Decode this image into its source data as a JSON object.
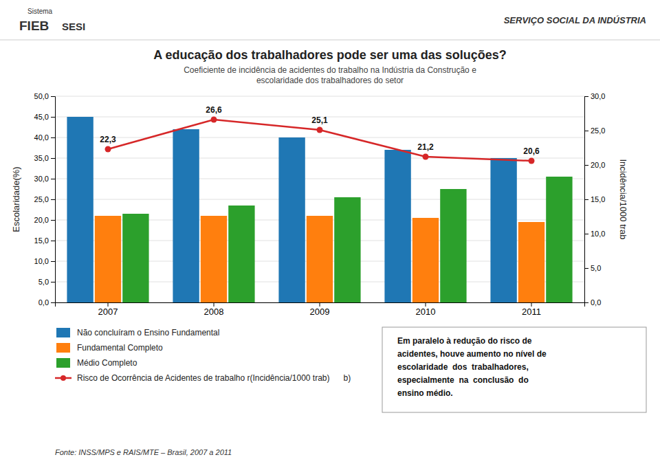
{
  "chart_data": {
    "type": "bar",
    "title": "A educação dos trabalhadores pode ser uma das soluções?",
    "subtitle": [
      "Coeficiente de incidência de acidentes do trabalho na Indústria da Construção e",
      "escolaridade dos trabalhadores do setor"
    ],
    "categories": [
      "2007",
      "2008",
      "2009",
      "2010",
      "2011"
    ],
    "series": [
      {
        "name": "Não concluíram o Ensino Fundamental",
        "values": [
          45.0,
          42.0,
          40.0,
          37.0,
          35.0
        ]
      },
      {
        "name": "Fundamental Completo",
        "values": [
          21.0,
          21.0,
          21.0,
          20.5,
          19.5
        ]
      },
      {
        "name": "Médio Completo",
        "values": [
          21.5,
          23.5,
          25.5,
          27.5,
          30.5
        ]
      },
      {
        "name": "Risco de Ocorrência de Acidentes de trabalho r(Incidência/1000 trab)      b)",
        "type": "line",
        "axis": "y2",
        "marker": "circle",
        "data_labels": true,
        "values": [
          22.3,
          26.6,
          25.1,
          21.2,
          20.6
        ],
        "value_labels": [
          "22,3",
          "26,6",
          "25,1",
          "21,2",
          "20,6"
        ]
      }
    ],
    "ylim": [
      0,
      50
    ],
    "yticks": [
      {
        "value": 0.0,
        "label": "0,0"
      },
      {
        "value": 5.0,
        "label": "5,0"
      },
      {
        "value": 10.0,
        "label": "10,0"
      },
      {
        "value": 15.0,
        "label": "15,0"
      },
      {
        "value": 20.0,
        "label": "20,0"
      },
      {
        "value": 25.0,
        "label": "25,0"
      },
      {
        "value": 30.0,
        "label": "30,0"
      },
      {
        "value": 35.0,
        "label": "35,0"
      },
      {
        "value": 40.0,
        "label": "40,0"
      },
      {
        "value": 45.0,
        "label": "45,0"
      },
      {
        "value": 50.0,
        "label": "50,0"
      }
    ],
    "y2lim": [
      0,
      30
    ],
    "y2ticks": [
      {
        "value": 0.0,
        "label": "0,0"
      },
      {
        "value": 5.0,
        "label": "5,0"
      },
      {
        "value": 10.0,
        "label": "10,0"
      },
      {
        "value": 15.0,
        "label": "15,0"
      },
      {
        "value": 20.0,
        "label": "20,0"
      },
      {
        "value": 25.0,
        "label": "25,0"
      },
      {
        "value": 30.0,
        "label": "30,0"
      }
    ],
    "ylabel": "Escolaridade(%)",
    "y2label": "Incidência/1000 trab",
    "grid": true,
    "legend": "bottom",
    "annotations": [
      "SERVIÇO SOCIAL DA INDÚSTRIA",
      "Sistema",
      "FIEB",
      "SESI",
      "Em paralelo à redução do risco de\nacidentes, houve aumento no nível de\nescolaridade  dos  trabalhadores,\nespecialmente  na  conclusão  do\nensino médio.",
      "Fonte: INSS/MPS e RAIS/MTE – Brasil, 2007 a 2011"
    ]
  }
}
